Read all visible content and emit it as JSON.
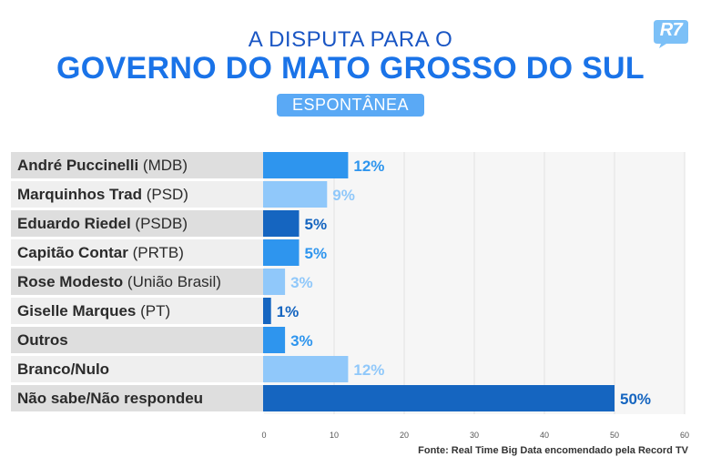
{
  "header": {
    "title_line1": "A DISPUTA PARA O",
    "title_line2": "GOVERNO DO MATO GROSSO DO SUL",
    "badge": "ESPONTÂNEA",
    "logo": "R7"
  },
  "source": "Fonte: Real Time Big Data encomendado pela Record TV",
  "colors": {
    "blue": "#2e95ee",
    "light_blue": "#90c8fa",
    "dark_blue": "#1565c0",
    "label_bg_dark": "#dedede",
    "label_bg_light": "#efefef",
    "plot_bg": "#f6f6f6",
    "logo": "#7cc0f7"
  },
  "chart_data": {
    "type": "bar",
    "orientation": "horizontal",
    "categories": [
      "André Puccinelli (MDB)",
      "Marquinhos Trad (PSD)",
      "Eduardo Riedel (PSDB)",
      "Capitão Contar (PRTB)",
      "Rose Modesto (União Brasil)",
      "Giselle Marques (PT)",
      "Outros",
      "Branco/Nulo",
      "Não sabe/Não respondeu"
    ],
    "bold_part": [
      "André Puccinelli",
      "Marquinhos Trad",
      "Eduardo Riedel",
      "Capitão Contar",
      "Rose Modesto",
      "Giselle Marques",
      "Outros",
      "Branco/Nulo",
      "Não sabe/Não respondeu"
    ],
    "light_part": [
      " (MDB)",
      " (PSD)",
      " (PSDB)",
      " (PRTB)",
      " (União Brasil)",
      " (PT)",
      "",
      "",
      ""
    ],
    "values": [
      12,
      9,
      5,
      5,
      3,
      1,
      3,
      12,
      50
    ],
    "value_labels": [
      "12%",
      "9%",
      "5%",
      "5%",
      "3%",
      "1%",
      "3%",
      "12%",
      "50%"
    ],
    "bar_colors": [
      "blue",
      "light_blue",
      "dark_blue",
      "blue",
      "light_blue",
      "dark_blue",
      "blue",
      "light_blue",
      "dark_blue"
    ],
    "xlim": [
      0,
      60
    ],
    "xticks": [
      0,
      10,
      20,
      30,
      40,
      50,
      60
    ],
    "xtick_labels": [
      "0",
      "10",
      "20",
      "30",
      "40",
      "50",
      "60"
    ],
    "grid": true,
    "legend": "none"
  }
}
